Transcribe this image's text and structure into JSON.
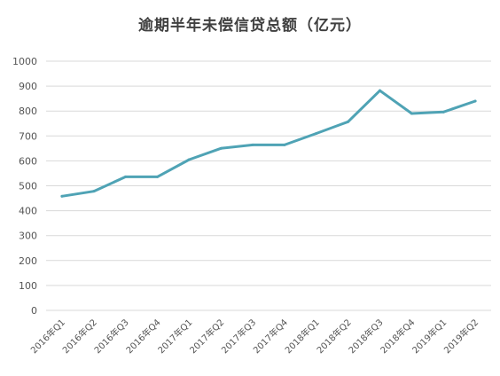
{
  "chart_data": {
    "type": "line",
    "title": "逾期半年未偿信贷总额（亿元）",
    "categories": [
      "2016年Q1",
      "2016年Q2",
      "2016年Q3",
      "2016年Q4",
      "2017年Q1",
      "2017年Q2",
      "2017年Q3",
      "2017年Q4",
      "2018年Q1",
      "2018年Q2",
      "2018年Q3",
      "2018年Q4",
      "2019年Q1",
      "2019年Q2"
    ],
    "series": [
      {
        "values": [
          458,
          478,
          536,
          536,
          605,
          650,
          664,
          664,
          710,
          757,
          882,
          790,
          796,
          840
        ],
        "color": "#4fa3b5"
      }
    ],
    "ylim": [
      0,
      1000
    ],
    "yticks": [
      0,
      100,
      200,
      300,
      400,
      500,
      600,
      700,
      800,
      900,
      1000
    ],
    "grid": true,
    "legend": "none",
    "colors": {
      "line": "#4fa3b5",
      "grid": "#d9d9d9",
      "text": "#555555"
    }
  }
}
